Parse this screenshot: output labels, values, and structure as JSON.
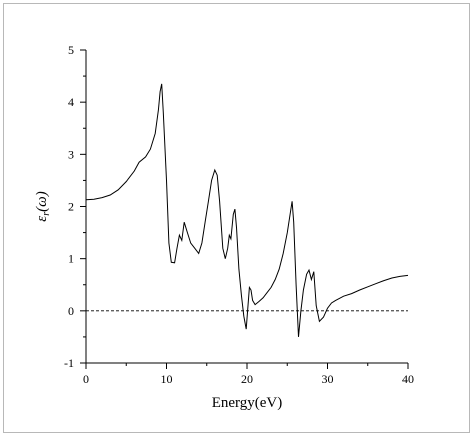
{
  "chart_data": {
    "type": "line",
    "xlabel": "Energy(eV)",
    "ylabel": "ε",
    "ylabel_subscript": "r",
    "ylabel_arg": "(ω)",
    "xlim": [
      0,
      40
    ],
    "ylim": [
      -1,
      5
    ],
    "x_ticks": [
      "0",
      "10",
      "20",
      "30",
      "40"
    ],
    "y_ticks": [
      "-1",
      "0",
      "1",
      "2",
      "3",
      "4",
      "5"
    ],
    "reference_line": {
      "y": 0,
      "style": "dashed"
    },
    "grid": false,
    "series": [
      {
        "color": "#000000",
        "points": [
          [
            0.0,
            2.13
          ],
          [
            1.0,
            2.14
          ],
          [
            2.0,
            2.17
          ],
          [
            3.0,
            2.22
          ],
          [
            4.0,
            2.32
          ],
          [
            5.0,
            2.48
          ],
          [
            6.0,
            2.68
          ],
          [
            6.6,
            2.85
          ],
          [
            7.4,
            2.95
          ],
          [
            8.0,
            3.1
          ],
          [
            8.6,
            3.4
          ],
          [
            9.0,
            3.85
          ],
          [
            9.2,
            4.2
          ],
          [
            9.4,
            4.35
          ],
          [
            9.6,
            3.8
          ],
          [
            10.0,
            2.5
          ],
          [
            10.3,
            1.3
          ],
          [
            10.6,
            0.93
          ],
          [
            11.0,
            0.92
          ],
          [
            11.3,
            1.2
          ],
          [
            11.6,
            1.45
          ],
          [
            11.9,
            1.35
          ],
          [
            12.2,
            1.7
          ],
          [
            12.6,
            1.5
          ],
          [
            13.0,
            1.3
          ],
          [
            13.5,
            1.2
          ],
          [
            14.0,
            1.1
          ],
          [
            14.4,
            1.3
          ],
          [
            14.8,
            1.7
          ],
          [
            15.2,
            2.1
          ],
          [
            15.6,
            2.5
          ],
          [
            16.0,
            2.7
          ],
          [
            16.3,
            2.6
          ],
          [
            16.6,
            2.1
          ],
          [
            17.0,
            1.2
          ],
          [
            17.3,
            1.0
          ],
          [
            17.6,
            1.2
          ],
          [
            17.8,
            1.45
          ],
          [
            18.0,
            1.38
          ],
          [
            18.3,
            1.85
          ],
          [
            18.5,
            1.95
          ],
          [
            18.7,
            1.6
          ],
          [
            19.0,
            0.8
          ],
          [
            19.3,
            0.3
          ],
          [
            19.6,
            -0.1
          ],
          [
            19.9,
            -0.35
          ],
          [
            20.1,
            0.05
          ],
          [
            20.3,
            0.45
          ],
          [
            20.5,
            0.4
          ],
          [
            20.7,
            0.2
          ],
          [
            21.0,
            0.12
          ],
          [
            21.5,
            0.18
          ],
          [
            22.0,
            0.25
          ],
          [
            22.5,
            0.35
          ],
          [
            23.0,
            0.45
          ],
          [
            23.5,
            0.6
          ],
          [
            24.0,
            0.8
          ],
          [
            24.5,
            1.1
          ],
          [
            25.0,
            1.5
          ],
          [
            25.4,
            1.9
          ],
          [
            25.6,
            2.1
          ],
          [
            25.8,
            1.7
          ],
          [
            26.1,
            0.5
          ],
          [
            26.4,
            -0.5
          ],
          [
            26.7,
            0.0
          ],
          [
            27.0,
            0.4
          ],
          [
            27.4,
            0.7
          ],
          [
            27.7,
            0.78
          ],
          [
            28.0,
            0.6
          ],
          [
            28.3,
            0.75
          ],
          [
            28.6,
            0.1
          ],
          [
            29.0,
            -0.2
          ],
          [
            29.5,
            -0.12
          ],
          [
            30.0,
            0.05
          ],
          [
            30.5,
            0.15
          ],
          [
            31.0,
            0.2
          ],
          [
            32.0,
            0.28
          ],
          [
            33.0,
            0.33
          ],
          [
            34.0,
            0.4
          ],
          [
            35.0,
            0.46
          ],
          [
            36.0,
            0.52
          ],
          [
            37.0,
            0.58
          ],
          [
            38.0,
            0.63
          ],
          [
            39.0,
            0.66
          ],
          [
            40.0,
            0.68
          ]
        ]
      }
    ]
  }
}
